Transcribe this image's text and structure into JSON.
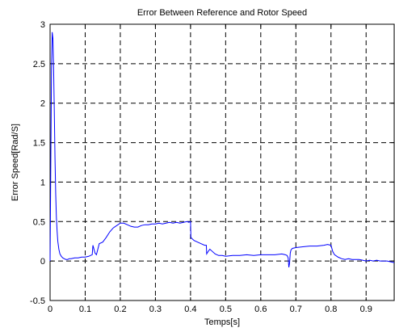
{
  "chart_data": {
    "type": "line",
    "title": "Error Between Reference and Rotor Speed",
    "xlabel": "Temps[s]",
    "ylabel": "Error Speed[Rad/S]",
    "xlim": [
      0,
      0.98
    ],
    "ylim": [
      -0.5,
      3
    ],
    "xticks": [
      0,
      0.1,
      0.2,
      0.3,
      0.4,
      0.5,
      0.6,
      0.7,
      0.8,
      0.9
    ],
    "xtick_labels": [
      "0",
      "0.1",
      "0.2",
      "0.3",
      "0.4",
      "0.5",
      "0.6",
      "0.7",
      "0.8",
      "0.9"
    ],
    "yticks": [
      -0.5,
      0,
      0.5,
      1,
      1.5,
      2,
      2.5,
      3
    ],
    "ytick_labels": [
      "-0.5",
      "0",
      "0.5",
      "1",
      "1.5",
      "2",
      "2.5",
      "3"
    ],
    "grid": true,
    "line_color": "#0000ff",
    "series": [
      {
        "x": [
          0,
          0.002,
          0.004,
          0.006,
          0.008,
          0.01,
          0.012,
          0.014,
          0.016,
          0.018,
          0.02,
          0.022,
          0.025,
          0.028,
          0.032,
          0.036,
          0.04,
          0.045,
          0.05,
          0.055,
          0.06,
          0.07,
          0.08,
          0.09,
          0.1,
          0.11,
          0.12,
          0.122,
          0.125,
          0.128,
          0.132,
          0.136,
          0.14,
          0.15,
          0.16,
          0.17,
          0.18,
          0.19,
          0.2,
          0.21,
          0.22,
          0.23,
          0.24,
          0.25,
          0.26,
          0.27,
          0.28,
          0.29,
          0.3,
          0.31,
          0.32,
          0.33,
          0.34,
          0.35,
          0.36,
          0.37,
          0.38,
          0.39,
          0.395,
          0.4,
          0.401,
          0.405,
          0.41,
          0.42,
          0.43,
          0.44,
          0.445,
          0.446,
          0.45,
          0.455,
          0.46,
          0.47,
          0.48,
          0.49,
          0.5,
          0.52,
          0.54,
          0.56,
          0.58,
          0.6,
          0.62,
          0.64,
          0.66,
          0.67,
          0.675,
          0.678,
          0.68,
          0.682,
          0.684,
          0.686,
          0.69,
          0.7,
          0.72,
          0.74,
          0.76,
          0.78,
          0.79,
          0.8,
          0.805,
          0.81,
          0.82,
          0.83,
          0.84,
          0.85,
          0.86,
          0.87,
          0.88,
          0.89,
          0.9,
          0.91,
          0.92,
          0.93,
          0.94,
          0.95,
          0.96,
          0.97,
          0.98
        ],
        "y": [
          0.0,
          1.2,
          2.4,
          2.9,
          2.82,
          2.45,
          1.9,
          1.3,
          0.85,
          0.55,
          0.38,
          0.25,
          0.15,
          0.09,
          0.06,
          0.04,
          0.03,
          0.02,
          0.02,
          0.03,
          0.03,
          0.04,
          0.04,
          0.05,
          0.05,
          0.06,
          0.08,
          0.2,
          0.15,
          0.1,
          0.08,
          0.15,
          0.22,
          0.24,
          0.3,
          0.37,
          0.42,
          0.45,
          0.48,
          0.48,
          0.46,
          0.44,
          0.43,
          0.43,
          0.45,
          0.46,
          0.46,
          0.47,
          0.47,
          0.48,
          0.47,
          0.48,
          0.49,
          0.48,
          0.49,
          0.48,
          0.49,
          0.5,
          0.49,
          0.5,
          0.3,
          0.28,
          0.26,
          0.24,
          0.22,
          0.2,
          0.2,
          0.09,
          0.12,
          0.15,
          0.13,
          0.09,
          0.07,
          0.07,
          0.06,
          0.07,
          0.07,
          0.08,
          0.07,
          0.08,
          0.08,
          0.08,
          0.09,
          0.08,
          0.07,
          0.04,
          -0.08,
          -0.03,
          0.1,
          0.14,
          0.16,
          0.17,
          0.18,
          0.19,
          0.19,
          0.2,
          0.21,
          0.2,
          0.12,
          0.08,
          0.05,
          0.03,
          0.02,
          0.03,
          0.02,
          0.02,
          0.02,
          0.01,
          0.0,
          0.01,
          0.0,
          0.01,
          0.0,
          0.0,
          0.0,
          -0.01,
          -0.02
        ]
      }
    ]
  }
}
